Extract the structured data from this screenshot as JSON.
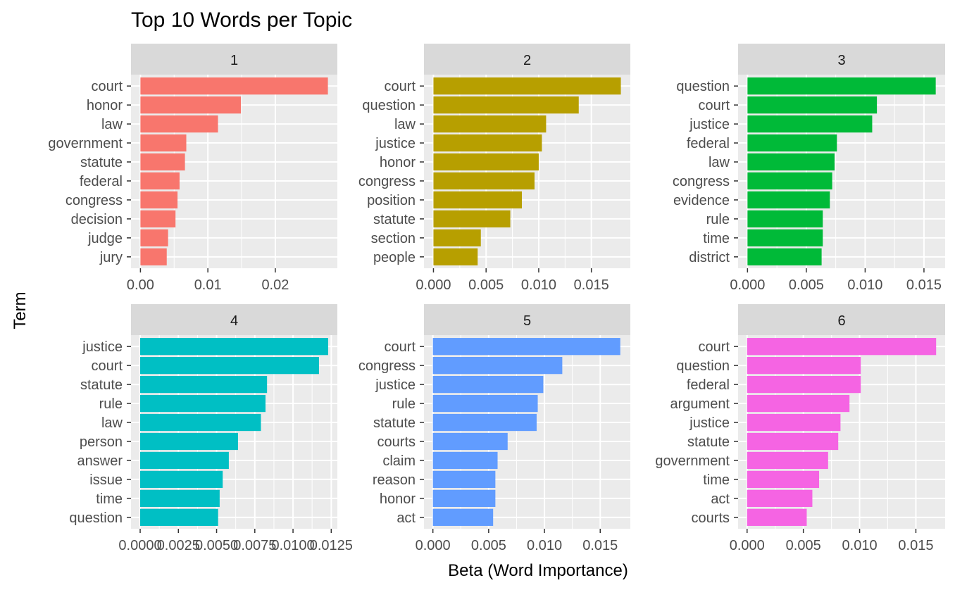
{
  "chart_data": {
    "type": "bar",
    "orientation": "horizontal",
    "title": "Top 10 Words per Topic",
    "xlabel": "Beta (Word Importance)",
    "ylabel": "Term",
    "grid": true,
    "legend": "none",
    "facets": [
      {
        "label": "1",
        "color": "#F8766D",
        "xlim": [
          -0.0014,
          0.0292
        ],
        "ticks": [
          0,
          0.01,
          0.02
        ],
        "tick_labels": [
          "0.00",
          "0.01",
          "0.02"
        ],
        "terms": [
          "court",
          "honor",
          "law",
          "government",
          "statute",
          "federal",
          "congress",
          "decision",
          "judge",
          "jury"
        ],
        "values": [
          0.0278,
          0.0149,
          0.0115,
          0.0068,
          0.0066,
          0.0058,
          0.0055,
          0.0052,
          0.0041,
          0.0039
        ]
      },
      {
        "label": "2",
        "color": "#B79F00",
        "xlim": [
          -0.0009,
          0.0187
        ],
        "ticks": [
          0,
          0.005,
          0.01,
          0.015
        ],
        "tick_labels": [
          "0.000",
          "0.005",
          "0.010",
          "0.015"
        ],
        "terms": [
          "court",
          "question",
          "law",
          "justice",
          "honor",
          "congress",
          "position",
          "statute",
          "section",
          "people"
        ],
        "values": [
          0.0178,
          0.0138,
          0.0107,
          0.0103,
          0.01,
          0.0096,
          0.0084,
          0.0073,
          0.0045,
          0.0042
        ]
      },
      {
        "label": "3",
        "color": "#00BA38",
        "xlim": [
          -0.0008,
          0.0168
        ],
        "ticks": [
          0,
          0.005,
          0.01,
          0.015
        ],
        "tick_labels": [
          "0.000",
          "0.005",
          "0.010",
          "0.015"
        ],
        "terms": [
          "question",
          "court",
          "justice",
          "federal",
          "law",
          "congress",
          "evidence",
          "rule",
          "time",
          "district"
        ],
        "values": [
          0.016,
          0.011,
          0.0106,
          0.0076,
          0.0074,
          0.0072,
          0.007,
          0.0064,
          0.0064,
          0.0063
        ]
      },
      {
        "label": "4",
        "color": "#00BFC4",
        "xlim": [
          -0.0006,
          0.0129
        ],
        "ticks": [
          0,
          0.0025,
          0.005,
          0.0075,
          0.01,
          0.0125
        ],
        "tick_labels": [
          "0.0000",
          "0.0025",
          "0.0050",
          "0.0075",
          "0.0100",
          "0.0125"
        ],
        "terms": [
          "justice",
          "court",
          "statute",
          "rule",
          "law",
          "person",
          "answer",
          "issue",
          "time",
          "question"
        ],
        "values": [
          0.0123,
          0.0117,
          0.0083,
          0.0082,
          0.0079,
          0.0064,
          0.0058,
          0.0054,
          0.0052,
          0.0051
        ]
      },
      {
        "label": "5",
        "color": "#619CFF",
        "xlim": [
          -0.0008,
          0.0177
        ],
        "ticks": [
          0,
          0.005,
          0.01,
          0.015
        ],
        "tick_labels": [
          "0.000",
          "0.005",
          "0.010",
          "0.015"
        ],
        "terms": [
          "court",
          "congress",
          "justice",
          "rule",
          "statute",
          "courts",
          "claim",
          "reason",
          "honor",
          "act"
        ],
        "values": [
          0.0168,
          0.0116,
          0.0099,
          0.0094,
          0.0093,
          0.0067,
          0.0058,
          0.0056,
          0.0056,
          0.0054
        ]
      },
      {
        "label": "6",
        "color": "#F564E3",
        "xlim": [
          -0.0008,
          0.0176
        ],
        "ticks": [
          0,
          0.005,
          0.01,
          0.015
        ],
        "tick_labels": [
          "0.000",
          "0.005",
          "0.010",
          "0.015"
        ],
        "terms": [
          "court",
          "question",
          "federal",
          "argument",
          "justice",
          "statute",
          "government",
          "time",
          "act",
          "courts"
        ],
        "values": [
          0.0168,
          0.0101,
          0.0101,
          0.0091,
          0.0083,
          0.0081,
          0.0072,
          0.0064,
          0.0058,
          0.0053
        ]
      }
    ]
  }
}
